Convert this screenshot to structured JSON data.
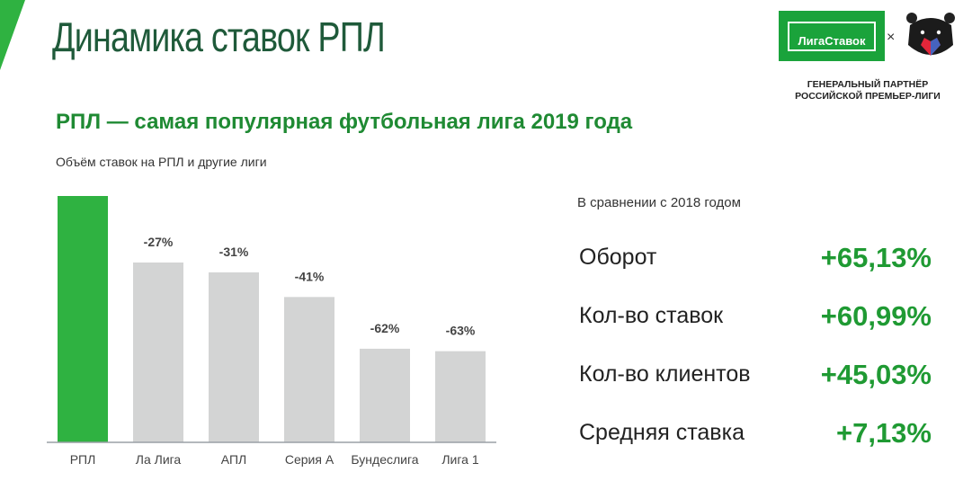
{
  "header": {
    "title": "Динамика ставок РПЛ",
    "brand_name": "ЛигаСтавок",
    "separator": "×",
    "partner_lines": [
      "ГЕНЕРАЛЬНЫЙ ПАРТНЁР",
      "РОССИЙСКОЙ ПРЕМЬЕР-ЛИГИ"
    ]
  },
  "subtitle": "РПЛ — самая популярная футбольная лига 2019 года",
  "chart_data": {
    "type": "bar",
    "title": "Объём ставок на РПЛ и другие лиги",
    "categories": [
      "РПЛ",
      "Ла Лига",
      "АПЛ",
      "Серия А",
      "Бундеслига",
      "Лига 1"
    ],
    "values": [
      100,
      73,
      69,
      59,
      38,
      37
    ],
    "data_labels": [
      "",
      "-27%",
      "-31%",
      "-41%",
      "-62%",
      "-63%"
    ],
    "highlight_color": "#2fb241",
    "bar_color": "#d3d4d4",
    "ylim": [
      0,
      100
    ],
    "grid": false
  },
  "comparison": {
    "caption": "В сравнении с 2018 годом",
    "rows": [
      {
        "label": "Оборот",
        "value": "+65,13%"
      },
      {
        "label": "Кол-во ставок",
        "value": "+60,99%"
      },
      {
        "label": "Кол-во клиентов",
        "value": "+45,03%"
      },
      {
        "label": "Средняя ставка",
        "value": "+7,13%"
      }
    ]
  },
  "colors": {
    "accent_green": "#1f9a33",
    "title_green": "#1f5a3a"
  }
}
